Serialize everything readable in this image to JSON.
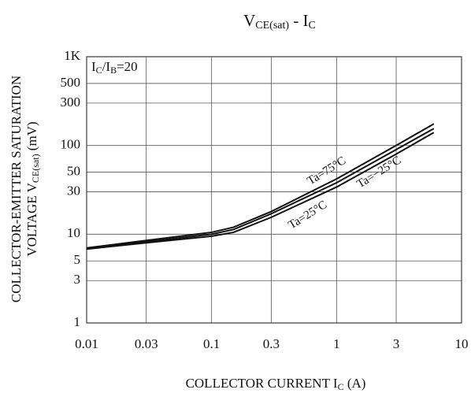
{
  "chart_data": {
    "type": "line",
    "title": [
      "V",
      "CE(sat)",
      " - I",
      "C"
    ],
    "x_label": [
      "COLLECTOR CURRENT I",
      "C",
      " (A)"
    ],
    "y_label": [
      "COLLECTOR-EMITTER SATURATION",
      "VOLTAGE V",
      "CE(sat)",
      " (mV)"
    ],
    "condition": [
      "I",
      "C",
      "/I",
      "B",
      "=20"
    ],
    "annotations": [
      "Ta=75°C",
      "Ta=25°C",
      "Ta=−25°C"
    ],
    "log_x": true,
    "log_y": true,
    "grid": true,
    "xlim": [
      0.01,
      10
    ],
    "xticks": [
      0.01,
      0.03,
      0.1,
      0.3,
      1,
      3,
      10
    ],
    "ylim": [
      1,
      1000
    ],
    "yticks": [
      1,
      3,
      5,
      10,
      30,
      50,
      100,
      300,
      500,
      {
        "value": 1000,
        "label": "1K"
      }
    ],
    "x": [
      0.01,
      0.03,
      0.1,
      0.15,
      0.3,
      1,
      3,
      6
    ],
    "series": [
      {
        "name": "Ta=75°C",
        "color": "#111111",
        "values": [
          7,
          8.5,
          10.5,
          12,
          18,
          42,
          100,
          175
        ]
      },
      {
        "name": "Ta=25°C",
        "color": "#111111",
        "values": [
          6.9,
          8.2,
          10,
          11.3,
          17,
          38,
          90,
          155
        ]
      },
      {
        "name": "Ta=−25°C",
        "color": "#111111",
        "values": [
          6.8,
          8,
          9.5,
          10.5,
          15.5,
          34,
          80,
          140
        ]
      }
    ]
  }
}
